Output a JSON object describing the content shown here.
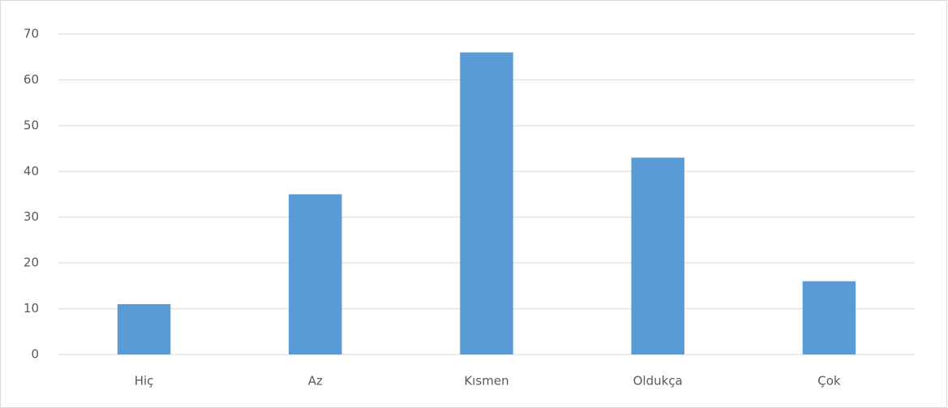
{
  "chart_data": {
    "type": "bar",
    "categories": [
      "Hiç",
      "Az",
      "Kısmen",
      "Oldukça",
      "Çok"
    ],
    "values": [
      11,
      35,
      66,
      43,
      16
    ],
    "color": "#5b9bd5",
    "ylim": [
      0,
      70
    ],
    "yticks": [
      0,
      10,
      20,
      30,
      40,
      50,
      60,
      70
    ],
    "grid": true
  }
}
